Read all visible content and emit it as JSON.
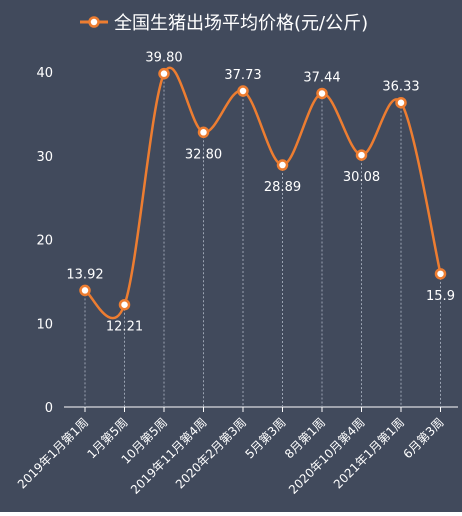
{
  "theme": {
    "background": "#414a5c",
    "line_color": "#ed7d31",
    "text_color": "#ffffff",
    "guide_color": "#9aa3b2",
    "axis_color": "#ffffff"
  },
  "chart_data": {
    "type": "line",
    "title": "",
    "xlabel": "",
    "ylabel": "",
    "ylim": [
      0,
      40
    ],
    "yticks": [
      0,
      10,
      20,
      30,
      40
    ],
    "grid": false,
    "smooth": true,
    "legend_position": "top-center",
    "categories": [
      "2019年1月第1周",
      "1月第5周",
      "10月第5周",
      "2019年11月第4周",
      "2020年2月第3周",
      "5月第3周",
      "8月第1周",
      "2020年10月第4周",
      "2021年1月第1周",
      "6月第3周"
    ],
    "series": [
      {
        "name": "全国生猪出场平均价格(元/公斤)",
        "values": [
          13.92,
          12.21,
          39.8,
          32.8,
          37.73,
          28.89,
          37.44,
          30.08,
          36.33,
          15.9
        ],
        "labels": [
          "13.92",
          "12.21",
          "39.80",
          "32.80",
          "37.73",
          "28.89",
          "37.44",
          "30.08",
          "36.33",
          "15.9"
        ],
        "label_positions": [
          "above",
          "below",
          "above",
          "below",
          "above",
          "below",
          "above",
          "below",
          "above",
          "below"
        ]
      }
    ]
  }
}
